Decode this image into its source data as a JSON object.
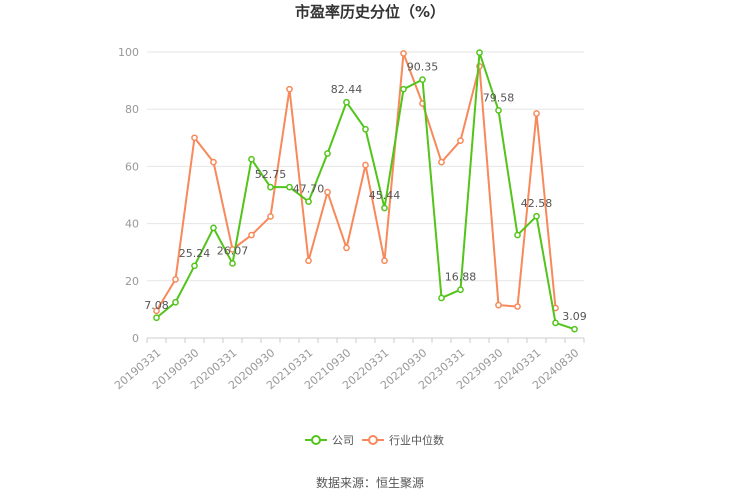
{
  "title": "市盈率历史分位（%）",
  "source": "数据来源：恒生聚源",
  "chart_data": {
    "type": "line",
    "title": "市盈率历史分位（%）",
    "ylim": [
      0,
      100
    ],
    "yticks": [
      0,
      20,
      40,
      60,
      80,
      100
    ],
    "grid": true,
    "legend": "bottom-center",
    "x_tick_labels": [
      "20190331",
      "20190930",
      "20200331",
      "20200930",
      "20210331",
      "20210930",
      "20220331",
      "20220930",
      "20230331",
      "20230930",
      "20240331",
      "20240830"
    ],
    "x": [
      "20190331",
      "20190630",
      "20190930",
      "20191231",
      "20200331",
      "20200630",
      "20200930",
      "20201231",
      "20210331",
      "20210630",
      "20210930",
      "20211231",
      "20220331",
      "20220630",
      "20220930",
      "20221231",
      "20230331",
      "20230630",
      "20230930",
      "20231231",
      "20240331",
      "20240630",
      "20240830"
    ],
    "series": [
      {
        "name": "公司",
        "color": "#52c41a",
        "values": [
          7.08,
          12.5,
          25.24,
          38.5,
          26.07,
          62.5,
          52.75,
          52.75,
          47.7,
          64.5,
          82.44,
          73.0,
          45.44,
          87.0,
          90.35,
          14.0,
          16.88,
          99.8,
          79.58,
          36.0,
          42.58,
          5.3,
          3.09
        ],
        "labels": [
          "7.08",
          "",
          "25.24",
          "",
          "26.07",
          "",
          "52.75",
          "",
          "47.70",
          "",
          "82.44",
          "",
          "45.44",
          "",
          "90.35",
          "",
          "16.88",
          "",
          "79.58",
          "",
          "42.58",
          "",
          "3.09"
        ]
      },
      {
        "name": "行业中位数",
        "color": "#f7895a",
        "values": [
          9.5,
          20.5,
          70.0,
          61.5,
          31.0,
          36.0,
          42.5,
          87.0,
          27.0,
          51.0,
          31.5,
          60.5,
          27.0,
          99.5,
          82.0,
          61.5,
          69.0,
          95.0,
          11.5,
          11.0,
          78.5,
          10.5,
          null
        ]
      }
    ]
  }
}
